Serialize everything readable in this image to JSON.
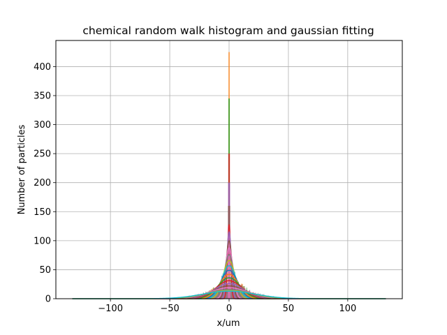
{
  "chart_data": {
    "type": "line",
    "title": "chemical random walk histogram and gaussian fitting",
    "xlabel": "x/um",
    "ylabel": "Number of particles",
    "xlim": [
      -146,
      146
    ],
    "ylim": [
      0,
      445
    ],
    "xticks": [
      -100,
      -50,
      0,
      50,
      100
    ],
    "xtick_labels": [
      "−100",
      "−50",
      "0",
      "50",
      "100"
    ],
    "yticks": [
      0,
      50,
      100,
      150,
      200,
      250,
      300,
      350,
      400
    ],
    "ytick_labels": [
      "0",
      "50",
      "100",
      "150",
      "200",
      "250",
      "300",
      "350",
      "400"
    ],
    "grid": true,
    "legend": "none",
    "gaussian_fit_x_range": [
      -132,
      132
    ],
    "histogram_peaks": [
      425,
      345,
      250,
      200,
      160,
      125
    ],
    "gaussian_fit_peaks": [
      128,
      115,
      100,
      88,
      76,
      66,
      57,
      49,
      42,
      36,
      31,
      26,
      22,
      19,
      16,
      14,
      13
    ],
    "gaussian_fit_sigmas": [
      1.3,
      1.8,
      2.5,
      3.2,
      4.0,
      5.0,
      6.0,
      7.0,
      8.0,
      9.5,
      11,
      12.5,
      14,
      16,
      18,
      20,
      22
    ],
    "series_colors": [
      "#1f77b4",
      "#ff7f0e",
      "#2ca02c",
      "#d62728",
      "#9467bd",
      "#8c564b",
      "#e377c2",
      "#7f7f7f",
      "#bcbd22",
      "#17becf"
    ]
  }
}
